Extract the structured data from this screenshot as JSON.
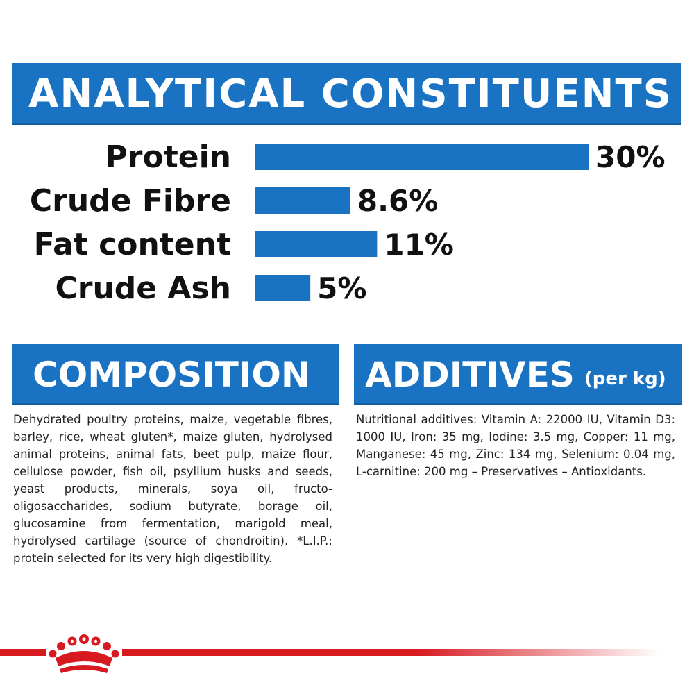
{
  "header": {
    "title": "ANALYTICAL CONSTITUENTS"
  },
  "chart_data": {
    "type": "bar",
    "orientation": "horizontal",
    "categories": [
      "Protein",
      "Crude Fibre",
      "Fat content",
      "Crude Ash"
    ],
    "values": [
      30,
      8.6,
      11,
      5
    ],
    "value_labels": [
      "30%",
      "8.6%",
      "11%",
      "5%"
    ],
    "bar_color": "#1a73c2",
    "xlim": [
      0,
      30
    ],
    "grid": false
  },
  "composition": {
    "title": "COMPOSITION",
    "text": "Dehydrated poultry proteins, maize, vegetable fibres, barley, rice, wheat gluten*, maize gluten, hydrolysed animal proteins, animal fats, beet pulp, maize flour, cellulose powder, fish oil, psyllium husks and seeds, yeast products, minerals, soya oil, fructo-oligosaccharides, sodium butyrate, borage oil, glucosamine from fermentation, marigold meal, hydrolysed cartilage (source of chondroitin). *L.I.P.: protein selected for its very high digestibility."
  },
  "additives": {
    "title": "ADDITIVES",
    "subtitle": "(per kg)",
    "text": "Nutritional additives: Vitamin A: 22000 IU, Vitamin D3: 1000 IU, Iron: 35 mg, Iodine: 3.5 mg, Copper: 11 mg, Manganese: 45 mg, Zinc: 134 mg, Selenium: 0.04 mg, L-carnitine: 200 mg – Preservatives – Antioxidants."
  },
  "colors": {
    "brand_blue": "#1a73c2",
    "brand_red": "#d71920"
  },
  "footer": {
    "logo_icon": "crown-icon"
  }
}
